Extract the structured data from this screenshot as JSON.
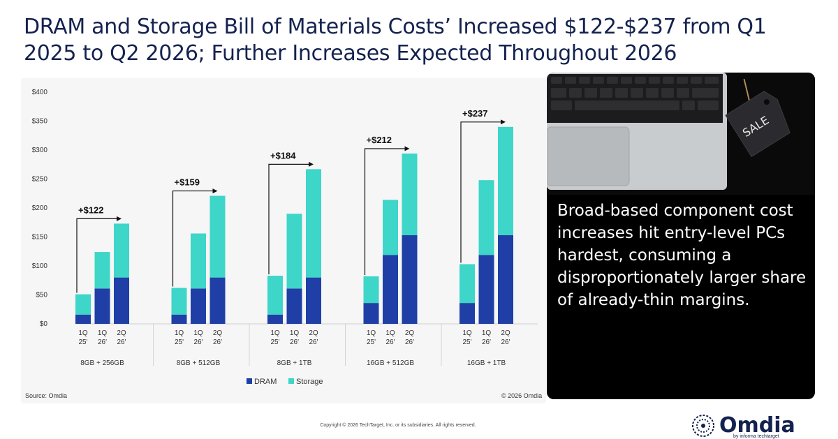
{
  "title": "DRAM and Storage Bill of Materials Costs’ Increased $122-$237 from Q1 2025 to Q2 2026; Further Increases Expected Throughout 2026",
  "source": "Source: Omdia",
  "chart_copyright": "© 2026 Omdia",
  "panel_text": "Broad-based component cost increases hit entry-level PCs hardest, consuming a disproportionately larger share of already-thin margins.",
  "photo_tag": "SALE",
  "footer_copyright": "Copyright © 2026 TechTarget, Inc. or its subsidiaries. All rights reserved.",
  "logo": {
    "name": "Omdia",
    "tagline": "by informa techtarget"
  },
  "colors": {
    "dram": "#1f3fa6",
    "storage": "#3dd6c8",
    "title": "#14224f"
  },
  "chart_data": {
    "type": "bar",
    "stacked": true,
    "ylim": [
      0,
      400
    ],
    "yticks": [
      "$0",
      "$50",
      "$100",
      "$150",
      "$200",
      "$250",
      "$300",
      "$350",
      "$400"
    ],
    "legend_position": "bottom",
    "series": [
      {
        "name": "DRAM",
        "color": "#1f3fa6"
      },
      {
        "name": "Storage",
        "color": "#3dd6c8"
      }
    ],
    "groups": [
      {
        "label": "8GB + 256GB",
        "annotation": "+$122",
        "bars": [
          {
            "label": [
              "1Q",
              "25'"
            ],
            "dram": 16,
            "storage": 35
          },
          {
            "label": [
              "1Q",
              "26'"
            ],
            "dram": 61,
            "storage": 63
          },
          {
            "label": [
              "2Q",
              "26'"
            ],
            "dram": 80,
            "storage": 93
          }
        ]
      },
      {
        "label": "8GB + 512GB",
        "annotation": "+$159",
        "bars": [
          {
            "label": [
              "1Q",
              "25'"
            ],
            "dram": 16,
            "storage": 46
          },
          {
            "label": [
              "1Q",
              "26'"
            ],
            "dram": 61,
            "storage": 95
          },
          {
            "label": [
              "2Q",
              "26'"
            ],
            "dram": 80,
            "storage": 141
          }
        ]
      },
      {
        "label": "8GB + 1TB",
        "annotation": "+$184",
        "bars": [
          {
            "label": [
              "1Q",
              "25'"
            ],
            "dram": 16,
            "storage": 67
          },
          {
            "label": [
              "1Q",
              "26'"
            ],
            "dram": 61,
            "storage": 129
          },
          {
            "label": [
              "2Q",
              "26'"
            ],
            "dram": 80,
            "storage": 187
          }
        ]
      },
      {
        "label": "16GB + 512GB",
        "annotation": "+$212",
        "bars": [
          {
            "label": [
              "1Q",
              "25'"
            ],
            "dram": 36,
            "storage": 46
          },
          {
            "label": [
              "1Q",
              "26'"
            ],
            "dram": 119,
            "storage": 95
          },
          {
            "label": [
              "2Q",
              "26'"
            ],
            "dram": 153,
            "storage": 141
          }
        ]
      },
      {
        "label": "16GB + 1TB",
        "annotation": "+$237",
        "bars": [
          {
            "label": [
              "1Q",
              "25'"
            ],
            "dram": 36,
            "storage": 67
          },
          {
            "label": [
              "1Q",
              "26'"
            ],
            "dram": 119,
            "storage": 129
          },
          {
            "label": [
              "2Q",
              "26'"
            ],
            "dram": 153,
            "storage": 187
          }
        ]
      }
    ]
  }
}
